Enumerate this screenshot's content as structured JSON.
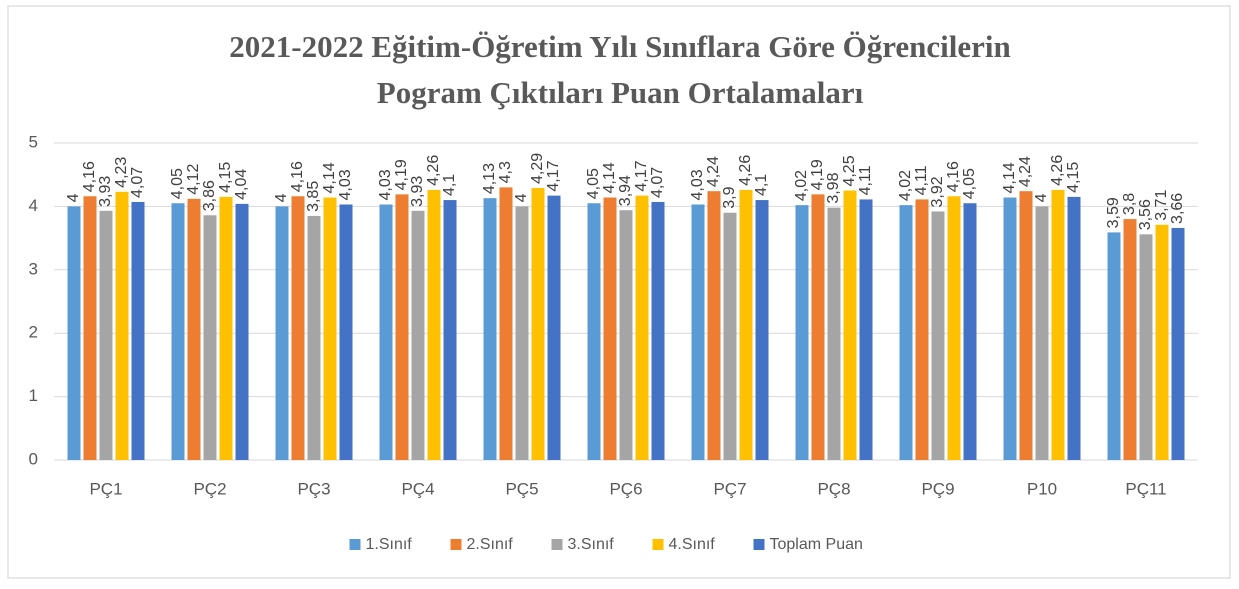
{
  "chart_data": {
    "type": "bar",
    "title": [
      "2021-2022 Eğitim-Öğretim Yılı Sınıflara Göre Öğrencilerin",
      "Pogram Çıktıları Puan Ortalamaları"
    ],
    "categories": [
      "PÇ1",
      "PÇ2",
      "PÇ3",
      "PÇ4",
      "PÇ5",
      "PÇ6",
      "PÇ7",
      "PÇ8",
      "PÇ9",
      "P10",
      "PÇ11"
    ],
    "series": [
      {
        "name": "1.Sınıf",
        "color": "#5b9bd5",
        "values": [
          4,
          4.05,
          4,
          4.03,
          4.13,
          4.05,
          4.03,
          4.02,
          4.02,
          4.14,
          3.59
        ],
        "value_labels": [
          "4",
          "4,05",
          "4",
          "4,03",
          "4,13",
          "4,05",
          "4,03",
          "4,02",
          "4,02",
          "4,14",
          "3,59"
        ]
      },
      {
        "name": "2.Sınıf",
        "color": "#ed7d31",
        "values": [
          4.16,
          4.12,
          4.16,
          4.19,
          4.3,
          4.14,
          4.24,
          4.19,
          4.11,
          4.24,
          3.8
        ],
        "value_labels": [
          "4,16",
          "4,12",
          "4,16",
          "4,19",
          "4,3",
          "4,14",
          "4,24",
          "4,19",
          "4,11",
          "4,24",
          "3,8"
        ]
      },
      {
        "name": "3.Sınıf",
        "color": "#a5a5a5",
        "values": [
          3.93,
          3.86,
          3.85,
          3.93,
          4,
          3.94,
          3.9,
          3.98,
          3.92,
          4,
          3.56
        ],
        "value_labels": [
          "3,93",
          "3,86",
          "3,85",
          "3,93",
          "4",
          "3,94",
          "3,9",
          "3,98",
          "3,92",
          "4",
          "3,56"
        ]
      },
      {
        "name": "4.Sınıf",
        "color": "#ffc000",
        "values": [
          4.23,
          4.15,
          4.14,
          4.26,
          4.29,
          4.17,
          4.26,
          4.25,
          4.16,
          4.26,
          3.71
        ],
        "value_labels": [
          "4,23",
          "4,15",
          "4,14",
          "4,26",
          "4,29",
          "4,17",
          "4,26",
          "4,25",
          "4,16",
          "4,26",
          "3,71"
        ]
      },
      {
        "name": "Toplam Puan",
        "color": "#4472c4",
        "values": [
          4.07,
          4.04,
          4.03,
          4.1,
          4.17,
          4.07,
          4.1,
          4.11,
          4.05,
          4.15,
          3.66
        ],
        "value_labels": [
          "4,07",
          "4,04",
          "4,03",
          "4,1",
          "4,17",
          "4,07",
          "4,1",
          "4,11",
          "4,05",
          "4,15",
          "3,66"
        ]
      }
    ],
    "ylim": [
      0,
      5
    ],
    "yticks": [
      0,
      1,
      2,
      3,
      4,
      5
    ],
    "grid": true,
    "legend": "bottom"
  }
}
